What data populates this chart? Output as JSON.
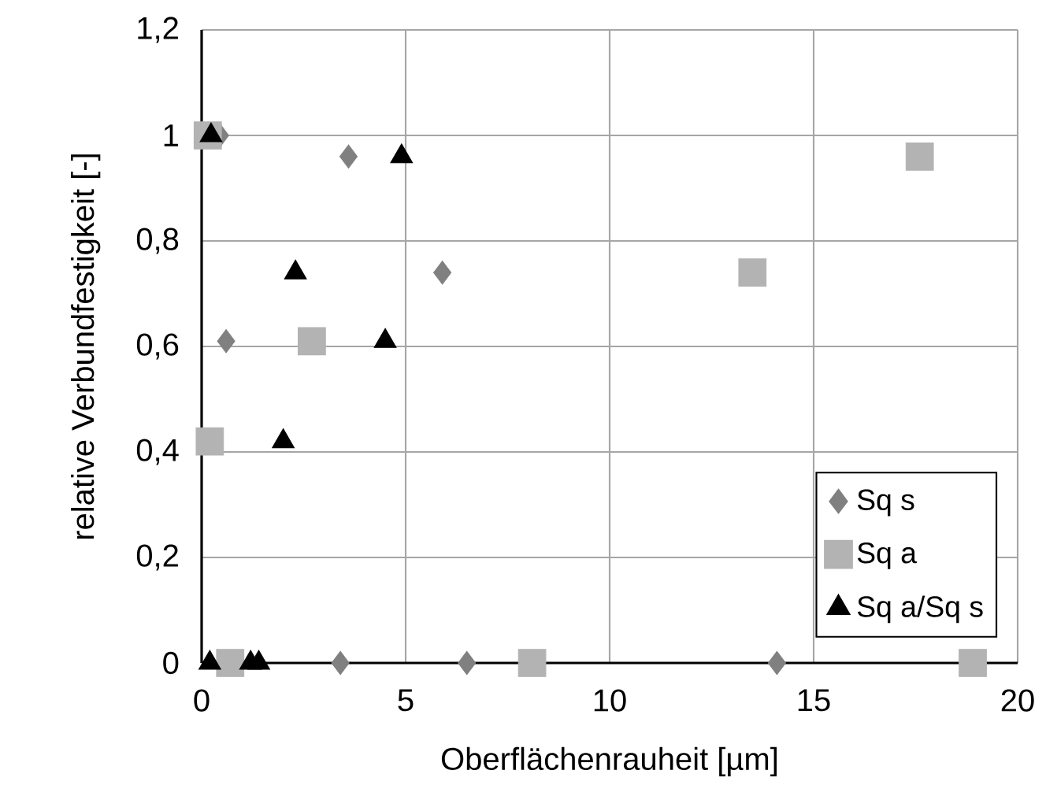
{
  "chart_data": {
    "type": "scatter",
    "xlabel": "Oberflächenrauheit [µm]",
    "ylabel": "relative Verbundfestigkeit [-]",
    "xlim": [
      0,
      20
    ],
    "ylim": [
      0,
      1.2
    ],
    "xticks": [
      0,
      5,
      10,
      15,
      20
    ],
    "yticks": [
      {
        "value": 0,
        "label": "0"
      },
      {
        "value": 0.2,
        "label": "0,2"
      },
      {
        "value": 0.4,
        "label": "0,4"
      },
      {
        "value": 0.6,
        "label": "0,6"
      },
      {
        "value": 0.8,
        "label": "0,8"
      },
      {
        "value": 1,
        "label": "1"
      },
      {
        "value": 1.2,
        "label": "1,2"
      }
    ],
    "grid": true,
    "legend": "bottom right",
    "series": [
      {
        "name": "Sq s",
        "color": "#808080",
        "marker": "diamond",
        "x": [
          0.45,
          3.6,
          5.9,
          0.6,
          3.4,
          6.5,
          14.1
        ],
        "values": [
          1.0,
          0.96,
          0.74,
          0.61,
          0,
          0,
          0
        ]
      },
      {
        "name": "Sq a",
        "color": "#b3b3b3",
        "marker": "square",
        "x": [
          0.15,
          2.7,
          0.2,
          0.7,
          8.1,
          13.5,
          17.6,
          18.9
        ],
        "values": [
          1.0,
          0.61,
          0.42,
          0,
          0,
          0.74,
          0.96,
          0
        ]
      },
      {
        "name": "Sq a/Sq s",
        "color": "#000000",
        "marker": "triangle",
        "x": [
          0.23,
          4.9,
          2.3,
          4.5,
          2.0,
          0.2,
          1.2,
          1.4
        ],
        "values": [
          1.0,
          0.96,
          0.74,
          0.61,
          0.42,
          0,
          0,
          0
        ]
      }
    ]
  }
}
